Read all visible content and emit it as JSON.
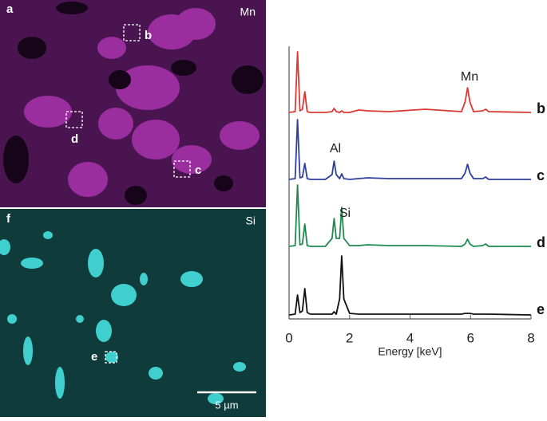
{
  "panels": [
    {
      "label": "a",
      "element": "Mn",
      "regions": [
        "b",
        "c",
        "d"
      ]
    },
    {
      "label": "f",
      "element": "Si",
      "regions": [
        "e"
      ],
      "scale_bar": "5 µm"
    }
  ],
  "chart_data": [
    {
      "type": "line",
      "label": "b",
      "annotation": "Mn",
      "color": "#d93a35",
      "xlim": [
        0,
        8
      ],
      "ylim": [
        0,
        84
      ],
      "x": [
        0,
        0.2,
        0.28,
        0.36,
        0.44,
        0.52,
        0.6,
        0.7,
        1.2,
        1.42,
        1.49,
        1.56,
        1.67,
        1.74,
        1.81,
        2.0,
        2.3,
        2.6,
        3.3,
        4.5,
        5.7,
        5.82,
        5.9,
        5.98,
        6.1,
        6.4,
        6.5,
        6.6,
        8
      ],
      "values": [
        2,
        3,
        78,
        4,
        6,
        28,
        3,
        2,
        2,
        3,
        7,
        3,
        2,
        4,
        2,
        2,
        5,
        4,
        3,
        6,
        3,
        15,
        33,
        15,
        3,
        4,
        6,
        3,
        2
      ]
    },
    {
      "type": "line",
      "label": "c",
      "annotation": "Al",
      "color": "#2f3f9e",
      "xlim": [
        0,
        8
      ],
      "ylim": [
        0,
        84
      ],
      "x": [
        0,
        0.2,
        0.28,
        0.36,
        0.44,
        0.52,
        0.6,
        0.7,
        1.2,
        1.42,
        1.49,
        1.56,
        1.67,
        1.74,
        1.81,
        2.0,
        2.3,
        2.6,
        3.3,
        4.5,
        5.7,
        5.82,
        5.9,
        5.98,
        6.1,
        6.4,
        6.5,
        6.6,
        8
      ],
      "values": [
        2,
        3,
        77,
        4,
        5,
        22,
        3,
        2,
        2,
        8,
        25,
        8,
        3,
        9,
        3,
        2,
        3,
        4,
        3,
        3,
        3,
        10,
        21,
        10,
        3,
        3,
        5,
        2,
        2
      ]
    },
    {
      "type": "line",
      "label": "d",
      "annotation": "Si",
      "color": "#1f8a50",
      "xlim": [
        0,
        8
      ],
      "ylim": [
        0,
        84
      ],
      "x": [
        0,
        0.2,
        0.28,
        0.36,
        0.44,
        0.52,
        0.6,
        0.7,
        1.2,
        1.42,
        1.49,
        1.56,
        1.67,
        1.74,
        1.81,
        2.0,
        2.3,
        2.6,
        3.3,
        4.5,
        5.7,
        5.82,
        5.9,
        5.98,
        6.1,
        6.4,
        6.5,
        6.6,
        8
      ],
      "values": [
        2,
        3,
        79,
        4,
        5,
        30,
        3,
        2,
        2,
        12,
        37,
        12,
        12,
        51,
        12,
        3,
        3,
        4,
        3,
        3,
        2,
        5,
        11,
        5,
        2,
        3,
        5,
        2,
        2
      ]
    },
    {
      "type": "line",
      "label": "e",
      "color": "#111111",
      "xlim": [
        0,
        8
      ],
      "ylim": [
        0,
        84
      ],
      "xlabel": "Energy [keV]",
      "xticks": [
        0,
        2,
        4,
        6,
        8
      ],
      "x": [
        0,
        0.2,
        0.28,
        0.36,
        0.44,
        0.52,
        0.6,
        0.7,
        1.2,
        1.42,
        1.49,
        1.56,
        1.67,
        1.74,
        1.81,
        2.0,
        2.3,
        2.6,
        3.3,
        4.5,
        5.7,
        5.82,
        5.9,
        5.98,
        6.1,
        6.4,
        6.5,
        6.6,
        8
      ],
      "values": [
        0,
        1,
        25,
        3,
        5,
        33,
        3,
        1,
        1,
        1,
        4,
        1,
        20,
        74,
        20,
        2,
        1,
        1,
        1,
        1,
        1,
        2,
        2,
        2,
        1,
        1,
        1,
        1,
        0
      ]
    }
  ]
}
